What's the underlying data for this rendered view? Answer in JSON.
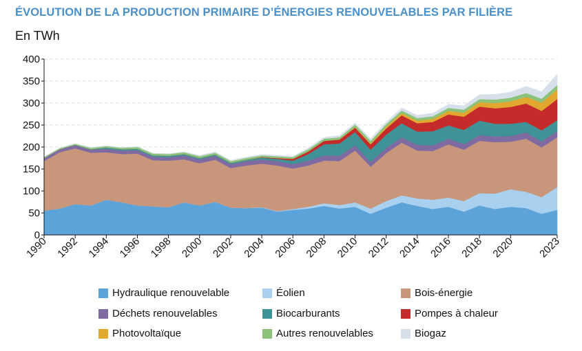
{
  "title": "ÉVOLUTION DE LA PRODUCTION PRIMAIRE D’ÉNERGIES RENOUVELABLES PAR FILIÈRE",
  "unit_label": "En TWh",
  "chart_data": {
    "type": "area",
    "stacked": true,
    "title": "ÉVOLUTION DE LA PRODUCTION PRIMAIRE D’ÉNERGIES RENOUVELABLES PAR FILIÈRE",
    "ylabel": "En TWh",
    "xlabel": "",
    "ylim": [
      0,
      400
    ],
    "yticks": [
      0,
      50,
      100,
      150,
      200,
      250,
      300,
      350,
      400
    ],
    "grid": true,
    "legend_position": "bottom",
    "x": [
      1990,
      1991,
      1992,
      1993,
      1994,
      1995,
      1996,
      1997,
      1998,
      1999,
      2000,
      2001,
      2002,
      2003,
      2004,
      2005,
      2006,
      2007,
      2008,
      2009,
      2010,
      2011,
      2012,
      2013,
      2014,
      2015,
      2016,
      2017,
      2018,
      2019,
      2020,
      2021,
      2022,
      2023
    ],
    "xtick_labels": [
      "1990",
      "1992",
      "1994",
      "1996",
      "1998",
      "2000",
      "2002",
      "2004",
      "2006",
      "2008",
      "2010",
      "2012",
      "2014",
      "2016",
      "2018",
      "2020",
      "2023"
    ],
    "xtick_values": [
      1990,
      1992,
      1994,
      1996,
      1998,
      2000,
      2002,
      2004,
      2006,
      2008,
      2010,
      2012,
      2014,
      2016,
      2018,
      2020,
      2023
    ],
    "series": [
      {
        "name": "Hydraulique renouvelable",
        "color": "#5ba3d9",
        "values": [
          55,
          60,
          70,
          67,
          80,
          74,
          67,
          65,
          63,
          74,
          67,
          75,
          62,
          61,
          62,
          53,
          57,
          60,
          66,
          60,
          64,
          48,
          62,
          74,
          66,
          59,
          64,
          53,
          67,
          59,
          64,
          61,
          48,
          57
        ]
      },
      {
        "name": "Éolien",
        "color": "#a9d0ee",
        "values": [
          0,
          0,
          0,
          0,
          0,
          0,
          0,
          0,
          0,
          0,
          0,
          0,
          0,
          0,
          1,
          1,
          2,
          4,
          6,
          8,
          10,
          12,
          15,
          16,
          17,
          21,
          21,
          24,
          28,
          35,
          40,
          37,
          38,
          52
        ]
      },
      {
        "name": "Bois-énergie",
        "color": "#c8967b",
        "values": [
          113,
          128,
          127,
          120,
          108,
          110,
          118,
          105,
          106,
          98,
          96,
          96,
          90,
          97,
          99,
          104,
          92,
          94,
          97,
          100,
          118,
          95,
          109,
          120,
          109,
          111,
          121,
          117,
          119,
          117,
          108,
          121,
          113,
          113
        ]
      },
      {
        "name": "Déchets renouvelables",
        "color": "#7f6aa2",
        "values": [
          7,
          7,
          7,
          7,
          8,
          8,
          8,
          8,
          8,
          9,
          9,
          9,
          9,
          10,
          10,
          10,
          10,
          11,
          12,
          12,
          12,
          11,
          12,
          12,
          13,
          13,
          13,
          13,
          13,
          13,
          13,
          14,
          14,
          14
        ]
      },
      {
        "name": "Biocarburants",
        "color": "#3f9295",
        "values": [
          0,
          0,
          1,
          1,
          3,
          3,
          3,
          3,
          3,
          3,
          3,
          3,
          3,
          3,
          4,
          5,
          8,
          15,
          25,
          28,
          30,
          28,
          30,
          32,
          30,
          32,
          30,
          32,
          33,
          29,
          28,
          24,
          25,
          25
        ]
      },
      {
        "name": "Pompes à chaleur",
        "color": "#c62b2b",
        "values": [
          0,
          0,
          0,
          0,
          0,
          0,
          0,
          0,
          0,
          0,
          0,
          0,
          0,
          0,
          1,
          2,
          4,
          6,
          8,
          9,
          10,
          12,
          14,
          18,
          19,
          21,
          25,
          30,
          32,
          35,
          38,
          42,
          44,
          48
        ]
      },
      {
        "name": "Photovoltaïque",
        "color": "#e2a72e",
        "values": [
          0,
          0,
          0,
          0,
          0,
          0,
          0,
          0,
          0,
          0,
          0,
          0,
          0,
          0,
          0,
          0,
          0,
          0,
          0,
          0,
          1,
          2,
          4,
          5,
          6,
          7,
          8,
          9,
          10,
          12,
          13,
          15,
          19,
          22
        ]
      },
      {
        "name": "Autres renouvelables",
        "color": "#8cc37a",
        "values": [
          2,
          2,
          2,
          3,
          3,
          3,
          4,
          4,
          4,
          4,
          4,
          4,
          4,
          4,
          4,
          4,
          4,
          5,
          5,
          5,
          6,
          6,
          6,
          6,
          6,
          6,
          7,
          7,
          7,
          8,
          8,
          9,
          9,
          10
        ]
      },
      {
        "name": "Biogaz",
        "color": "#d7e0ea",
        "values": [
          1,
          1,
          1,
          1,
          1,
          1,
          1,
          1,
          1,
          1,
          2,
          2,
          2,
          2,
          2,
          2,
          2,
          3,
          3,
          4,
          4,
          5,
          5,
          6,
          6,
          7,
          8,
          9,
          10,
          12,
          13,
          15,
          16,
          25
        ]
      }
    ]
  }
}
